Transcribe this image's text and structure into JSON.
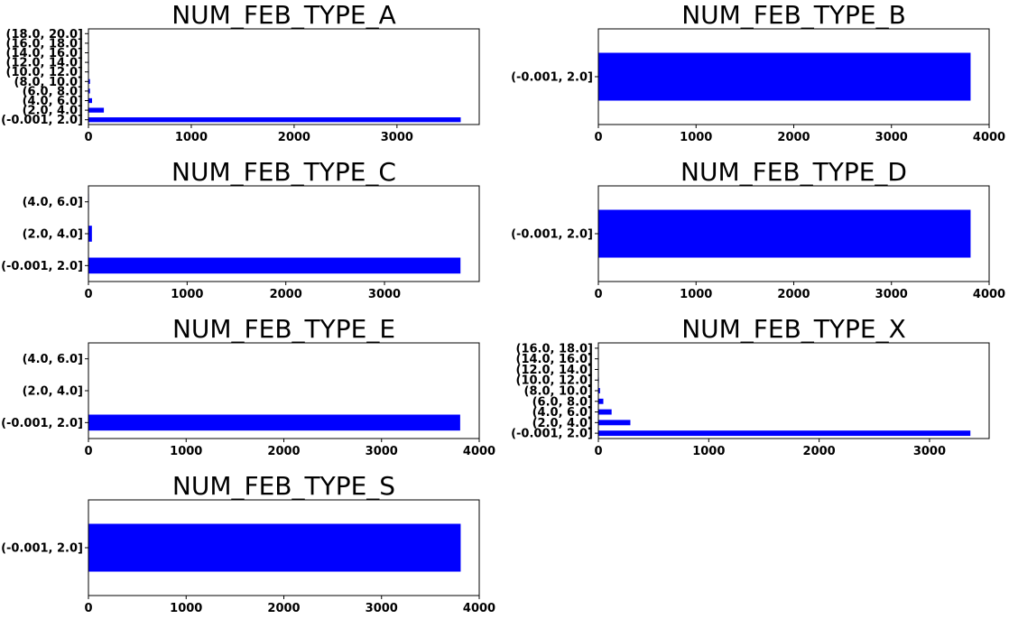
{
  "figure": {
    "bar_color": "#0000ff",
    "axes_color": "#000000",
    "background": "#ffffff"
  },
  "chart_data": [
    {
      "type": "bar",
      "orientation": "horizontal",
      "title": "NUM_FEB_TYPE_A",
      "categories": [
        "(-0.001, 2.0]",
        "(2.0, 4.0]",
        "(4.0, 6.0]",
        "(6.0, 8.0]",
        "(8.0, 10.0]",
        "(10.0, 12.0]",
        "(12.0, 14.0]",
        "(14.0, 16.0]",
        "(16.0, 18.0]",
        "(18.0, 20.0]"
      ],
      "values": [
        3620,
        150,
        35,
        15,
        15,
        5,
        5,
        3,
        3,
        3
      ],
      "xlim": [
        0,
        3800
      ],
      "xticks": [
        0,
        1000,
        2000,
        3000
      ],
      "grid": false
    },
    {
      "type": "bar",
      "orientation": "horizontal",
      "title": "NUM_FEB_TYPE_B",
      "categories": [
        "(-0.001, 2.0]"
      ],
      "values": [
        3810
      ],
      "xlim": [
        0,
        4000
      ],
      "xticks": [
        0,
        1000,
        2000,
        3000,
        4000
      ],
      "grid": false
    },
    {
      "type": "bar",
      "orientation": "horizontal",
      "title": "NUM_FEB_TYPE_C",
      "categories": [
        "(-0.001, 2.0]",
        "(2.0, 4.0]",
        "(4.0, 6.0]"
      ],
      "values": [
        3770,
        35,
        5
      ],
      "xlim": [
        0,
        3960
      ],
      "xticks": [
        0,
        1000,
        2000,
        3000
      ],
      "grid": false
    },
    {
      "type": "bar",
      "orientation": "horizontal",
      "title": "NUM_FEB_TYPE_D",
      "categories": [
        "(-0.001, 2.0]"
      ],
      "values": [
        3810
      ],
      "xlim": [
        0,
        4000
      ],
      "xticks": [
        0,
        1000,
        2000,
        3000,
        4000
      ],
      "grid": false
    },
    {
      "type": "bar",
      "orientation": "horizontal",
      "title": "NUM_FEB_TYPE_E",
      "categories": [
        "(-0.001, 2.0]",
        "(2.0, 4.0]",
        "(4.0, 6.0]"
      ],
      "values": [
        3805,
        3,
        2
      ],
      "xlim": [
        0,
        4000
      ],
      "xticks": [
        0,
        1000,
        2000,
        3000,
        4000
      ],
      "grid": false
    },
    {
      "type": "bar",
      "orientation": "horizontal",
      "title": "NUM_FEB_TYPE_X",
      "categories": [
        "(-0.001, 2.0]",
        "(2.0, 4.0]",
        "(4.0, 6.0]",
        "(6.0, 8.0]",
        "(8.0, 10.0]",
        "(10.0, 12.0]",
        "(12.0, 14.0]",
        "(14.0, 16.0]",
        "(16.0, 18.0]"
      ],
      "values": [
        3370,
        290,
        120,
        45,
        15,
        5,
        3,
        2,
        2
      ],
      "xlim": [
        0,
        3540
      ],
      "xticks": [
        0,
        1000,
        2000,
        3000
      ],
      "grid": false
    },
    {
      "type": "bar",
      "orientation": "horizontal",
      "title": "NUM_FEB_TYPE_S",
      "categories": [
        "(-0.001, 2.0]"
      ],
      "values": [
        3810
      ],
      "xlim": [
        0,
        4000
      ],
      "xticks": [
        0,
        1000,
        2000,
        3000,
        4000
      ],
      "grid": false
    }
  ]
}
